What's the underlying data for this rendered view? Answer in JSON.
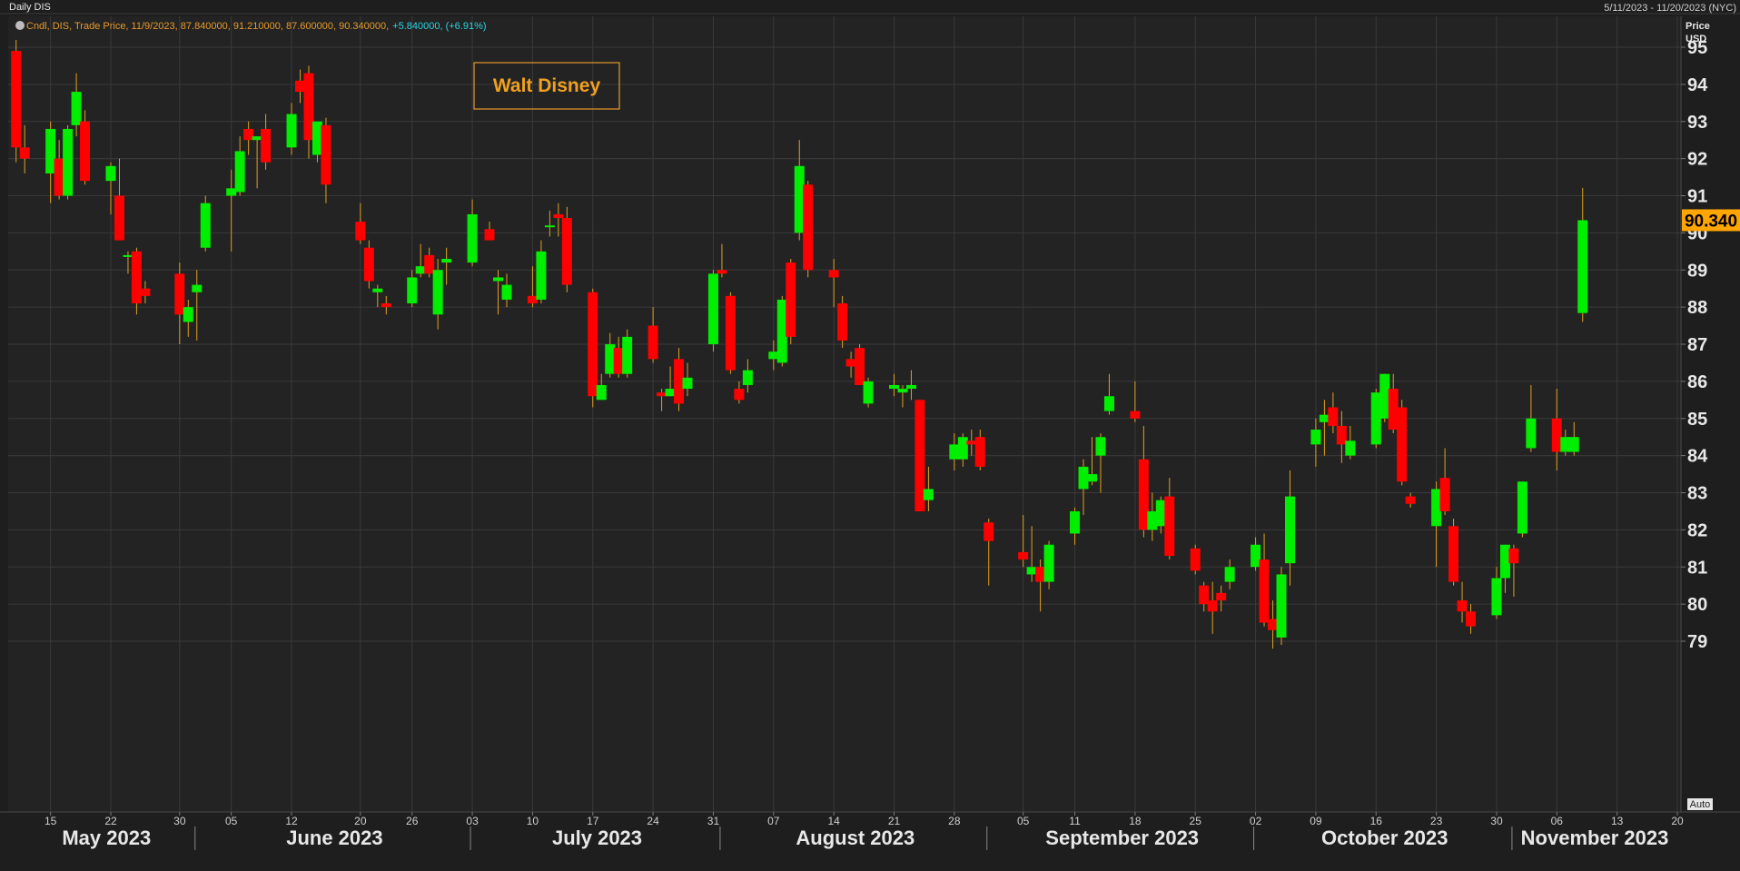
{
  "header": {
    "title": "Daily DIS",
    "date_range": "5/11/2023 - 11/20/2023 (NYC)"
  },
  "legend": {
    "prefix": "Cndl, DIS, Trade Price, 11/9/2023, 87.840000, 91.210000, 87.600000, 90.340000,",
    "change": "+5.840000, (+6.91%)"
  },
  "annotation": "Walt Disney",
  "y_axis": {
    "head_line1": "Price",
    "head_line2": "USD",
    "auto_label": "Auto"
  },
  "last_price_label": "90.340",
  "colors": {
    "background": "#1e1e1e",
    "plot_bg": "#232323",
    "grid": "#3a3a3a",
    "up": "#00ee00",
    "down": "#ff0000",
    "wick": "#e0a020",
    "accent": "#ffa500",
    "legend_main": "#e59a2b",
    "legend_change": "#2ad4e0"
  },
  "chart_data": {
    "type": "candlestick",
    "title": "Walt Disney",
    "ylabel": "Price USD",
    "ylim": [
      78.6,
      95.5
    ],
    "y_ticks": [
      79,
      80,
      81,
      82,
      83,
      84,
      85,
      86,
      87,
      88,
      89,
      90,
      91,
      92,
      93,
      94,
      95
    ],
    "x_ticks": [
      {
        "label": "15",
        "date": "2023-05-15"
      },
      {
        "label": "22",
        "date": "2023-05-22"
      },
      {
        "label": "30",
        "date": "2023-05-30"
      },
      {
        "label": "05",
        "date": "2023-06-05"
      },
      {
        "label": "12",
        "date": "2023-06-12"
      },
      {
        "label": "20",
        "date": "2023-06-20"
      },
      {
        "label": "26",
        "date": "2023-06-26"
      },
      {
        "label": "03",
        "date": "2023-07-03"
      },
      {
        "label": "10",
        "date": "2023-07-10"
      },
      {
        "label": "17",
        "date": "2023-07-17"
      },
      {
        "label": "24",
        "date": "2023-07-24"
      },
      {
        "label": "31",
        "date": "2023-07-31"
      },
      {
        "label": "07",
        "date": "2023-08-07"
      },
      {
        "label": "14",
        "date": "2023-08-14"
      },
      {
        "label": "21",
        "date": "2023-08-21"
      },
      {
        "label": "28",
        "date": "2023-08-28"
      },
      {
        "label": "05",
        "date": "2023-09-05"
      },
      {
        "label": "11",
        "date": "2023-09-11"
      },
      {
        "label": "18",
        "date": "2023-09-18"
      },
      {
        "label": "25",
        "date": "2023-09-25"
      },
      {
        "label": "02",
        "date": "2023-10-02"
      },
      {
        "label": "09",
        "date": "2023-10-09"
      },
      {
        "label": "16",
        "date": "2023-10-16"
      },
      {
        "label": "23",
        "date": "2023-10-23"
      },
      {
        "label": "30",
        "date": "2023-10-30"
      },
      {
        "label": "06",
        "date": "2023-11-06"
      },
      {
        "label": "13",
        "date": "2023-11-13"
      },
      {
        "label": "20",
        "date": "2023-11-20"
      }
    ],
    "months": [
      {
        "label": "May 2023",
        "start": "2023-05-11"
      },
      {
        "label": "June 2023",
        "start": "2023-06-01"
      },
      {
        "label": "July 2023",
        "start": "2023-07-03"
      },
      {
        "label": "August 2023",
        "start": "2023-08-01"
      },
      {
        "label": "September 2023",
        "start": "2023-09-01"
      },
      {
        "label": "October 2023",
        "start": "2023-10-02"
      },
      {
        "label": "November 2023",
        "start": "2023-11-01"
      }
    ],
    "x_end": "2023-11-20",
    "candles": [
      {
        "date": "2023-05-11",
        "o": 94.9,
        "h": 95.2,
        "l": 91.9,
        "c": 92.3
      },
      {
        "date": "2023-05-12",
        "o": 92.3,
        "h": 92.9,
        "l": 91.6,
        "c": 92.0
      },
      {
        "date": "2023-05-15",
        "o": 91.6,
        "h": 93.0,
        "l": 90.8,
        "c": 92.8
      },
      {
        "date": "2023-05-16",
        "o": 92.0,
        "h": 92.5,
        "l": 90.9,
        "c": 91.0
      },
      {
        "date": "2023-05-17",
        "o": 91.0,
        "h": 92.9,
        "l": 90.9,
        "c": 92.8
      },
      {
        "date": "2023-05-18",
        "o": 92.9,
        "h": 94.3,
        "l": 92.6,
        "c": 93.8
      },
      {
        "date": "2023-05-19",
        "o": 93.0,
        "h": 93.3,
        "l": 91.3,
        "c": 91.4
      },
      {
        "date": "2023-05-22",
        "o": 91.4,
        "h": 91.9,
        "l": 90.5,
        "c": 91.8
      },
      {
        "date": "2023-05-23",
        "o": 91.0,
        "h": 92.0,
        "l": 89.8,
        "c": 89.8
      },
      {
        "date": "2023-05-24",
        "o": 89.4,
        "h": 89.5,
        "l": 88.9,
        "c": 89.4
      },
      {
        "date": "2023-05-25",
        "o": 89.5,
        "h": 89.6,
        "l": 87.8,
        "c": 88.1
      },
      {
        "date": "2023-05-26",
        "o": 88.5,
        "h": 88.7,
        "l": 88.1,
        "c": 88.3
      },
      {
        "date": "2023-05-30",
        "o": 88.9,
        "h": 89.2,
        "l": 87.0,
        "c": 87.8
      },
      {
        "date": "2023-05-31",
        "o": 87.6,
        "h": 88.2,
        "l": 87.2,
        "c": 88.0
      },
      {
        "date": "2023-06-01",
        "o": 88.4,
        "h": 89.0,
        "l": 87.1,
        "c": 88.6
      },
      {
        "date": "2023-06-02",
        "o": 89.6,
        "h": 91.0,
        "l": 89.5,
        "c": 90.8
      },
      {
        "date": "2023-06-05",
        "o": 91.0,
        "h": 91.7,
        "l": 89.5,
        "c": 91.2
      },
      {
        "date": "2023-06-06",
        "o": 91.1,
        "h": 92.6,
        "l": 91.0,
        "c": 92.2
      },
      {
        "date": "2023-06-07",
        "o": 92.8,
        "h": 93.0,
        "l": 92.1,
        "c": 92.5
      },
      {
        "date": "2023-06-08",
        "o": 92.5,
        "h": 92.6,
        "l": 91.2,
        "c": 92.6
      },
      {
        "date": "2023-06-09",
        "o": 92.8,
        "h": 93.2,
        "l": 91.7,
        "c": 91.9
      },
      {
        "date": "2023-06-12",
        "o": 92.3,
        "h": 93.5,
        "l": 92.1,
        "c": 93.2
      },
      {
        "date": "2023-06-13",
        "o": 94.1,
        "h": 94.4,
        "l": 93.5,
        "c": 93.8
      },
      {
        "date": "2023-06-14",
        "o": 94.3,
        "h": 94.5,
        "l": 92.0,
        "c": 92.5
      },
      {
        "date": "2023-06-15",
        "o": 92.1,
        "h": 93.0,
        "l": 91.9,
        "c": 93.0
      },
      {
        "date": "2023-06-16",
        "o": 92.9,
        "h": 93.1,
        "l": 90.8,
        "c": 91.3
      },
      {
        "date": "2023-06-20",
        "o": 90.3,
        "h": 90.8,
        "l": 89.7,
        "c": 89.8
      },
      {
        "date": "2023-06-21",
        "o": 89.6,
        "h": 89.8,
        "l": 88.5,
        "c": 88.7
      },
      {
        "date": "2023-06-22",
        "o": 88.4,
        "h": 88.6,
        "l": 88.0,
        "c": 88.5
      },
      {
        "date": "2023-06-23",
        "o": 88.1,
        "h": 88.3,
        "l": 87.8,
        "c": 88.0
      },
      {
        "date": "2023-06-26",
        "o": 88.1,
        "h": 89.0,
        "l": 88.0,
        "c": 88.8
      },
      {
        "date": "2023-06-27",
        "o": 88.9,
        "h": 89.7,
        "l": 88.8,
        "c": 89.1
      },
      {
        "date": "2023-06-28",
        "o": 89.4,
        "h": 89.6,
        "l": 88.8,
        "c": 88.9
      },
      {
        "date": "2023-06-29",
        "o": 87.8,
        "h": 89.3,
        "l": 87.4,
        "c": 89.0
      },
      {
        "date": "2023-06-30",
        "o": 89.2,
        "h": 89.6,
        "l": 88.6,
        "c": 89.3
      },
      {
        "date": "2023-07-03",
        "o": 89.2,
        "h": 90.9,
        "l": 89.1,
        "c": 90.5
      },
      {
        "date": "2023-07-05",
        "o": 90.1,
        "h": 90.3,
        "l": 89.8,
        "c": 89.8
      },
      {
        "date": "2023-07-06",
        "o": 88.7,
        "h": 89.0,
        "l": 87.8,
        "c": 88.8
      },
      {
        "date": "2023-07-07",
        "o": 88.2,
        "h": 88.9,
        "l": 88.0,
        "c": 88.6
      },
      {
        "date": "2023-07-10",
        "o": 88.3,
        "h": 89.1,
        "l": 88.0,
        "c": 88.1
      },
      {
        "date": "2023-07-11",
        "o": 88.2,
        "h": 89.8,
        "l": 88.1,
        "c": 89.5
      },
      {
        "date": "2023-07-12",
        "o": 90.2,
        "h": 90.6,
        "l": 89.9,
        "c": 90.2
      },
      {
        "date": "2023-07-13",
        "o": 90.5,
        "h": 90.8,
        "l": 89.9,
        "c": 90.4
      },
      {
        "date": "2023-07-14",
        "o": 90.4,
        "h": 90.7,
        "l": 88.4,
        "c": 88.6
      },
      {
        "date": "2023-07-17",
        "o": 88.4,
        "h": 88.5,
        "l": 85.3,
        "c": 85.6
      },
      {
        "date": "2023-07-18",
        "o": 85.5,
        "h": 86.2,
        "l": 85.5,
        "c": 85.9
      },
      {
        "date": "2023-07-19",
        "o": 86.2,
        "h": 87.3,
        "l": 86.1,
        "c": 87.0
      },
      {
        "date": "2023-07-20",
        "o": 86.9,
        "h": 87.2,
        "l": 86.1,
        "c": 86.2
      },
      {
        "date": "2023-07-21",
        "o": 86.2,
        "h": 87.4,
        "l": 86.1,
        "c": 87.2
      },
      {
        "date": "2023-07-24",
        "o": 87.5,
        "h": 88.0,
        "l": 86.5,
        "c": 86.6
      },
      {
        "date": "2023-07-25",
        "o": 85.7,
        "h": 85.8,
        "l": 85.2,
        "c": 85.6
      },
      {
        "date": "2023-07-26",
        "o": 85.6,
        "h": 86.4,
        "l": 85.6,
        "c": 85.8
      },
      {
        "date": "2023-07-27",
        "o": 86.6,
        "h": 86.9,
        "l": 85.2,
        "c": 85.4
      },
      {
        "date": "2023-07-28",
        "o": 85.8,
        "h": 86.5,
        "l": 85.6,
        "c": 86.1
      },
      {
        "date": "2023-07-31",
        "o": 87.0,
        "h": 89.0,
        "l": 86.8,
        "c": 88.9
      },
      {
        "date": "2023-08-01",
        "o": 89.0,
        "h": 89.7,
        "l": 88.8,
        "c": 88.9
      },
      {
        "date": "2023-08-02",
        "o": 88.3,
        "h": 88.4,
        "l": 86.2,
        "c": 86.3
      },
      {
        "date": "2023-08-03",
        "o": 85.8,
        "h": 86.0,
        "l": 85.4,
        "c": 85.5
      },
      {
        "date": "2023-08-04",
        "o": 85.9,
        "h": 86.6,
        "l": 85.7,
        "c": 86.3
      },
      {
        "date": "2023-08-07",
        "o": 86.6,
        "h": 87.1,
        "l": 86.3,
        "c": 86.8
      },
      {
        "date": "2023-08-08",
        "o": 86.5,
        "h": 88.3,
        "l": 86.4,
        "c": 88.2
      },
      {
        "date": "2023-08-09",
        "o": 89.2,
        "h": 89.3,
        "l": 87.0,
        "c": 87.2
      },
      {
        "date": "2023-08-10",
        "o": 90.0,
        "h": 92.5,
        "l": 89.8,
        "c": 91.8
      },
      {
        "date": "2023-08-11",
        "o": 91.3,
        "h": 91.4,
        "l": 88.8,
        "c": 89.0
      },
      {
        "date": "2023-08-14",
        "o": 89.0,
        "h": 89.3,
        "l": 88.0,
        "c": 88.8
      },
      {
        "date": "2023-08-15",
        "o": 88.1,
        "h": 88.3,
        "l": 86.9,
        "c": 87.1
      },
      {
        "date": "2023-08-16",
        "o": 86.6,
        "h": 86.8,
        "l": 86.1,
        "c": 86.4
      },
      {
        "date": "2023-08-17",
        "o": 86.9,
        "h": 87.0,
        "l": 85.9,
        "c": 85.9
      },
      {
        "date": "2023-08-18",
        "o": 85.4,
        "h": 86.1,
        "l": 85.3,
        "c": 86.0
      },
      {
        "date": "2023-08-21",
        "o": 85.8,
        "h": 86.2,
        "l": 85.6,
        "c": 85.9
      },
      {
        "date": "2023-08-22",
        "o": 85.7,
        "h": 85.9,
        "l": 85.3,
        "c": 85.8
      },
      {
        "date": "2023-08-23",
        "o": 85.8,
        "h": 86.3,
        "l": 85.5,
        "c": 85.9
      },
      {
        "date": "2023-08-24",
        "o": 85.5,
        "h": 85.5,
        "l": 82.5,
        "c": 82.5
      },
      {
        "date": "2023-08-25",
        "o": 82.8,
        "h": 83.7,
        "l": 82.5,
        "c": 83.1
      },
      {
        "date": "2023-08-28",
        "o": 83.9,
        "h": 84.6,
        "l": 83.6,
        "c": 84.3
      },
      {
        "date": "2023-08-29",
        "o": 83.9,
        "h": 84.6,
        "l": 83.7,
        "c": 84.5
      },
      {
        "date": "2023-08-30",
        "o": 84.4,
        "h": 84.7,
        "l": 84.0,
        "c": 84.3
      },
      {
        "date": "2023-08-31",
        "o": 84.5,
        "h": 84.7,
        "l": 83.6,
        "c": 83.7
      },
      {
        "date": "2023-09-01",
        "o": 82.2,
        "h": 82.3,
        "l": 80.5,
        "c": 81.7
      },
      {
        "date": "2023-09-05",
        "o": 81.4,
        "h": 82.4,
        "l": 81.0,
        "c": 81.2
      },
      {
        "date": "2023-09-06",
        "o": 80.8,
        "h": 82.1,
        "l": 80.6,
        "c": 81.0
      },
      {
        "date": "2023-09-07",
        "o": 81.0,
        "h": 81.2,
        "l": 79.8,
        "c": 80.6
      },
      {
        "date": "2023-09-08",
        "o": 80.6,
        "h": 81.7,
        "l": 80.4,
        "c": 81.6
      },
      {
        "date": "2023-09-11",
        "o": 81.9,
        "h": 82.6,
        "l": 81.6,
        "c": 82.5
      },
      {
        "date": "2023-09-12",
        "o": 83.1,
        "h": 83.9,
        "l": 82.4,
        "c": 83.7
      },
      {
        "date": "2023-09-13",
        "o": 83.3,
        "h": 84.5,
        "l": 83.2,
        "c": 83.5
      },
      {
        "date": "2023-09-14",
        "o": 84.0,
        "h": 84.6,
        "l": 83.0,
        "c": 84.5
      },
      {
        "date": "2023-09-15",
        "o": 85.2,
        "h": 86.2,
        "l": 85.1,
        "c": 85.6
      },
      {
        "date": "2023-09-18",
        "o": 85.2,
        "h": 86.0,
        "l": 84.9,
        "c": 85.0
      },
      {
        "date": "2023-09-19",
        "o": 83.9,
        "h": 84.8,
        "l": 81.8,
        "c": 82.0
      },
      {
        "date": "2023-09-20",
        "o": 82.0,
        "h": 83.0,
        "l": 81.7,
        "c": 82.5
      },
      {
        "date": "2023-09-21",
        "o": 82.1,
        "h": 82.9,
        "l": 81.9,
        "c": 82.8
      },
      {
        "date": "2023-09-22",
        "o": 82.9,
        "h": 83.4,
        "l": 81.2,
        "c": 81.3
      },
      {
        "date": "2023-09-25",
        "o": 81.5,
        "h": 81.6,
        "l": 80.8,
        "c": 80.9
      },
      {
        "date": "2023-09-26",
        "o": 80.5,
        "h": 80.6,
        "l": 79.8,
        "c": 80.0
      },
      {
        "date": "2023-09-27",
        "o": 80.1,
        "h": 80.6,
        "l": 79.2,
        "c": 79.8
      },
      {
        "date": "2023-09-28",
        "o": 80.3,
        "h": 80.5,
        "l": 79.8,
        "c": 80.1
      },
      {
        "date": "2023-09-29",
        "o": 80.6,
        "h": 81.2,
        "l": 80.4,
        "c": 81.0
      },
      {
        "date": "2023-10-02",
        "o": 81.0,
        "h": 81.8,
        "l": 80.9,
        "c": 81.6
      },
      {
        "date": "2023-10-03",
        "o": 81.2,
        "h": 81.9,
        "l": 79.4,
        "c": 79.5
      },
      {
        "date": "2023-10-04",
        "o": 79.6,
        "h": 80.1,
        "l": 78.8,
        "c": 79.3
      },
      {
        "date": "2023-10-05",
        "o": 79.1,
        "h": 81.0,
        "l": 78.9,
        "c": 80.8
      },
      {
        "date": "2023-10-06",
        "o": 81.1,
        "h": 83.6,
        "l": 80.5,
        "c": 82.9
      },
      {
        "date": "2023-10-09",
        "o": 84.3,
        "h": 85.0,
        "l": 83.7,
        "c": 84.7
      },
      {
        "date": "2023-10-10",
        "o": 84.9,
        "h": 85.5,
        "l": 84.0,
        "c": 85.1
      },
      {
        "date": "2023-10-11",
        "o": 85.3,
        "h": 85.7,
        "l": 84.6,
        "c": 84.8
      },
      {
        "date": "2023-10-12",
        "o": 84.8,
        "h": 85.2,
        "l": 83.8,
        "c": 84.3
      },
      {
        "date": "2023-10-13",
        "o": 84.0,
        "h": 84.8,
        "l": 83.9,
        "c": 84.4
      },
      {
        "date": "2023-10-16",
        "o": 84.3,
        "h": 85.8,
        "l": 84.2,
        "c": 85.7
      },
      {
        "date": "2023-10-17",
        "o": 85.0,
        "h": 86.2,
        "l": 84.9,
        "c": 86.2
      },
      {
        "date": "2023-10-18",
        "o": 85.8,
        "h": 86.2,
        "l": 84.6,
        "c": 84.7
      },
      {
        "date": "2023-10-19",
        "o": 85.3,
        "h": 85.5,
        "l": 83.2,
        "c": 83.3
      },
      {
        "date": "2023-10-20",
        "o": 82.9,
        "h": 83.0,
        "l": 82.6,
        "c": 82.7
      },
      {
        "date": "2023-10-23",
        "o": 82.1,
        "h": 83.3,
        "l": 81.0,
        "c": 83.1
      },
      {
        "date": "2023-10-24",
        "o": 83.4,
        "h": 84.2,
        "l": 82.4,
        "c": 82.5
      },
      {
        "date": "2023-10-25",
        "o": 82.1,
        "h": 82.3,
        "l": 80.5,
        "c": 80.6
      },
      {
        "date": "2023-10-26",
        "o": 80.1,
        "h": 80.6,
        "l": 79.5,
        "c": 79.8
      },
      {
        "date": "2023-10-27",
        "o": 79.8,
        "h": 80.0,
        "l": 79.2,
        "c": 79.4
      },
      {
        "date": "2023-10-30",
        "o": 79.7,
        "h": 81.0,
        "l": 79.6,
        "c": 80.7
      },
      {
        "date": "2023-10-31",
        "o": 80.7,
        "h": 81.6,
        "l": 80.3,
        "c": 81.6
      },
      {
        "date": "2023-11-01",
        "o": 81.5,
        "h": 81.6,
        "l": 80.2,
        "c": 81.1
      },
      {
        "date": "2023-11-02",
        "o": 81.9,
        "h": 83.3,
        "l": 81.8,
        "c": 83.3
      },
      {
        "date": "2023-11-03",
        "o": 84.2,
        "h": 85.9,
        "l": 84.1,
        "c": 85.0
      },
      {
        "date": "2023-11-06",
        "o": 85.0,
        "h": 85.8,
        "l": 83.6,
        "c": 84.1
      },
      {
        "date": "2023-11-07",
        "o": 84.1,
        "h": 84.7,
        "l": 84.0,
        "c": 84.5
      },
      {
        "date": "2023-11-08",
        "o": 84.1,
        "h": 84.9,
        "l": 84.0,
        "c": 84.5
      },
      {
        "date": "2023-11-09",
        "o": 87.84,
        "h": 91.21,
        "l": 87.6,
        "c": 90.34
      }
    ]
  }
}
